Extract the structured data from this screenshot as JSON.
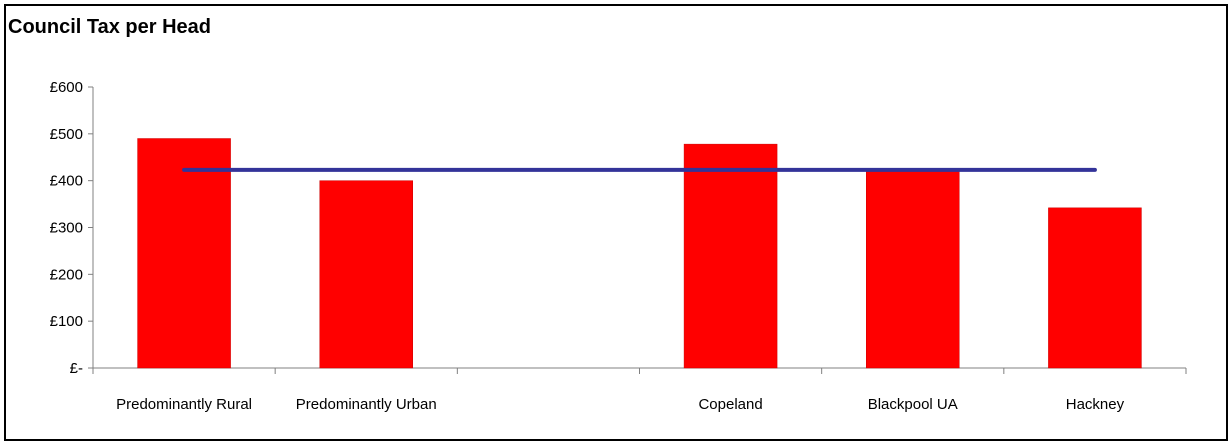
{
  "chart_data": {
    "type": "bar",
    "title": "Council Tax per Head",
    "categories": [
      "Predominantly Rural",
      "Predominantly Urban",
      "",
      "Copeland",
      "Blackpool UA",
      "Hackney"
    ],
    "series": [
      {
        "type": "bar",
        "values": [
          490,
          400,
          null,
          478,
          425,
          342
        ],
        "color": "#ff0000"
      },
      {
        "type": "line",
        "values": [
          423,
          423,
          423,
          423,
          423,
          423
        ],
        "color": "#333399"
      }
    ],
    "y_ticks": [
      {
        "value": 0,
        "label": "£-"
      },
      {
        "value": 100,
        "label": "£100"
      },
      {
        "value": 200,
        "label": "£200"
      },
      {
        "value": 300,
        "label": "£300"
      },
      {
        "value": 400,
        "label": "£400"
      },
      {
        "value": 500,
        "label": "£500"
      },
      {
        "value": 600,
        "label": "£600"
      }
    ],
    "ylim": [
      0,
      600
    ],
    "xlabel": "",
    "ylabel": "",
    "grid": false,
    "legend": "none"
  }
}
